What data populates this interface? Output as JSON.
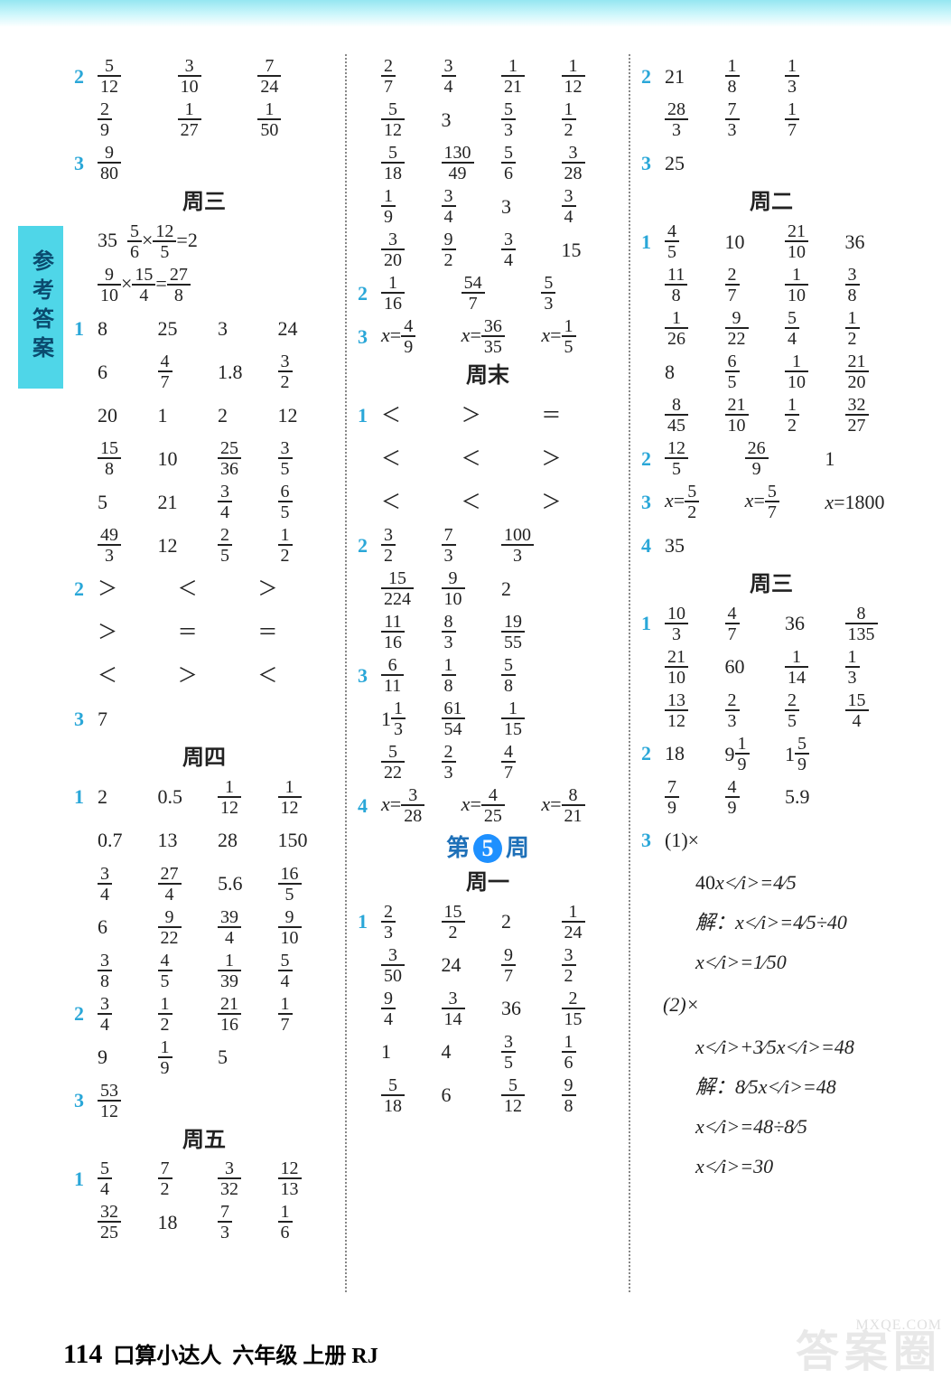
{
  "page": {
    "number": "114",
    "book_title": "口算小达人",
    "grade": "六年级 上册 RJ",
    "sidebar_title": "参考答案",
    "watermark": "答案圈",
    "watermark_url": "MXQE.COM"
  },
  "headers": {
    "wed": "周三",
    "thu": "周四",
    "fri": "周五",
    "weekend": "周末",
    "mon": "周一",
    "tue": "周二",
    "week5_pre": "第",
    "week5_num": "5",
    "week5_post": "周"
  },
  "col1": {
    "r1": {
      "lbl": "2",
      "c": [
        "5/12",
        "3/10",
        "7/24"
      ]
    },
    "r2": {
      "c": [
        "2/9",
        "1/27",
        "1/50"
      ]
    },
    "r3": {
      "lbl": "3",
      "c": [
        "9/80"
      ]
    },
    "wed_eq1_a": "35",
    "wed_eq1_b": "5/6",
    "wed_eq1_c": "12/5",
    "wed_eq1_r": "2",
    "wed_eq2_a": "9/10",
    "wed_eq2_b": "15/4",
    "wed_eq2_r": "27/8",
    "wed1": [
      [
        "8",
        "25",
        "3",
        "24"
      ],
      [
        "6",
        "4/7",
        "1.8",
        "3/2"
      ],
      [
        "20",
        "1",
        "2",
        "12"
      ],
      [
        "15/8",
        "10",
        "25/36",
        "3/5"
      ],
      [
        "5",
        "21",
        "3/4",
        "6/5"
      ],
      [
        "49/3",
        "12",
        "2/5",
        "1/2"
      ]
    ],
    "wed2": [
      [
        "＞",
        "＜",
        "＞"
      ],
      [
        "＞",
        "＝",
        "＝"
      ],
      [
        "＜",
        "＞",
        "＜"
      ]
    ],
    "wed3": "7",
    "thu1": [
      [
        "2",
        "0.5",
        "1/12",
        "1/12"
      ],
      [
        "0.7",
        "13",
        "28",
        "150"
      ],
      [
        "3/4",
        "27/4",
        "5.6",
        "16/5"
      ],
      [
        "6",
        "9/22",
        "39/4",
        "9/10"
      ],
      [
        "3/8",
        "4/5",
        "1/39",
        "5/4"
      ]
    ],
    "thu2": [
      [
        "3/4",
        "1/2",
        "21/16",
        "1/7"
      ],
      [
        "9",
        "1/9",
        "5",
        ""
      ]
    ],
    "thu3": "53/12",
    "fri1": [
      [
        "5/4",
        "7/2",
        "3/32",
        "12/13"
      ],
      [
        "32/25",
        "18",
        "7/3",
        "1/6"
      ]
    ]
  },
  "col2": {
    "top": [
      [
        "2/7",
        "3/4",
        "1/21",
        "1/12"
      ],
      [
        "5/12",
        "3",
        "5/3",
        "1/2"
      ],
      [
        "5/18",
        "130/49",
        "5/6",
        "3/28"
      ],
      [
        "1/9",
        "3/4",
        "3",
        "3/4"
      ],
      [
        "3/20",
        "9/2",
        "3/4",
        "15"
      ]
    ],
    "p2": [
      "1/16",
      "54/7",
      "5/3"
    ],
    "p3_eq": [
      [
        "x",
        "4/9"
      ],
      [
        "x",
        "36/35"
      ],
      [
        "x",
        "1/5"
      ]
    ],
    "weekend1": [
      [
        "＜",
        "＞",
        "＝"
      ],
      [
        "＜",
        "＜",
        "＞"
      ],
      [
        "＜",
        "＜",
        "＞"
      ]
    ],
    "weekend2": [
      [
        "3/2",
        "7/3",
        "100/3",
        ""
      ],
      [
        "15/224",
        "9/10",
        "2",
        ""
      ],
      [
        "11/16",
        "8/3",
        "19/55",
        ""
      ]
    ],
    "weekend3": [
      [
        "6/11",
        "1/8",
        "5/8",
        ""
      ],
      [
        "1 1/3",
        "61/54",
        "1/15",
        ""
      ],
      [
        "5/22",
        "2/3",
        "4/7",
        ""
      ]
    ],
    "weekend4_eq": [
      [
        "x",
        "3/28"
      ],
      [
        "x",
        "4/25"
      ],
      [
        "x",
        "8/21"
      ]
    ],
    "mon1": [
      [
        "2/3",
        "15/2",
        "2",
        "1/24"
      ],
      [
        "3/50",
        "24",
        "9/7",
        "3/2"
      ],
      [
        "9/4",
        "3/14",
        "36",
        "2/15"
      ],
      [
        "1",
        "4",
        "3/5",
        "1/6"
      ],
      [
        "5/18",
        "6",
        "5/12",
        "9/8"
      ]
    ]
  },
  "col3": {
    "p2": [
      [
        "21",
        "1/8",
        "1/3",
        ""
      ],
      [
        "28/3",
        "7/3",
        "1/7",
        ""
      ]
    ],
    "p3": "25",
    "tue1": [
      [
        "4/5",
        "10",
        "21/10",
        "36"
      ],
      [
        "11/8",
        "2/7",
        "1/10",
        "3/8"
      ],
      [
        "1/26",
        "9/22",
        "5/4",
        "1/2"
      ],
      [
        "8",
        "6/5",
        "1/10",
        "21/20"
      ],
      [
        "8/45",
        "21/10",
        "1/2",
        "32/27"
      ]
    ],
    "tue2": [
      "12/5",
      "26/9",
      "1"
    ],
    "tue3_eq": [
      [
        "x",
        "5/2"
      ],
      [
        "x",
        "5/7"
      ],
      [
        "x",
        "1800"
      ]
    ],
    "tue4": "35",
    "wed1": [
      [
        "10/3",
        "4/7",
        "36",
        "8/135"
      ],
      [
        "21/10",
        "60",
        "1/14",
        "1/3"
      ],
      [
        "13/12",
        "2/3",
        "2/5",
        "15/4"
      ]
    ],
    "wed2": [
      [
        "18",
        "9 1/9",
        "1 5/9",
        ""
      ],
      [
        "7/9",
        "4/9",
        "5.9",
        ""
      ]
    ],
    "wed3_label": "(1)×",
    "wed3_steps": [
      "40x=4/5",
      "解：x=4/5÷40",
      "x=1/50"
    ],
    "wed3b_label": "(2)×",
    "wed3b_steps": [
      "x+3/5x=48",
      "解：8/5x=48",
      "x=48÷8/5",
      "x=30"
    ]
  }
}
